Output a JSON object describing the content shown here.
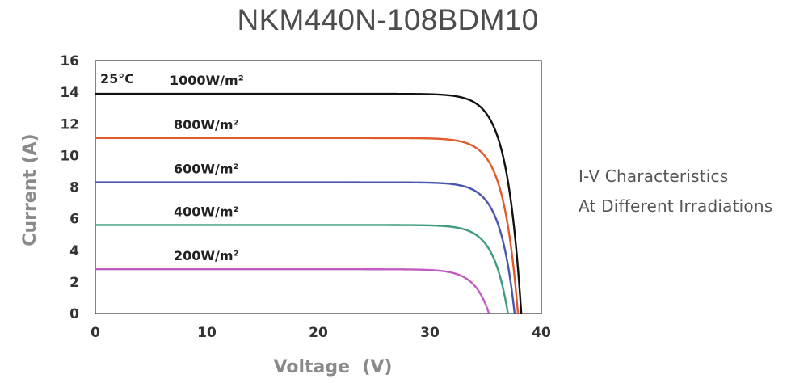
{
  "title": "NKM440N-108BDM10",
  "side_text": {
    "line1": "I-V Characteristics",
    "line2": "At Different Irradiations"
  },
  "chart_data": {
    "type": "line",
    "title": "NKM440N-108BDM10",
    "xlabel": "Voltage  (V)",
    "ylabel": "Current (A)",
    "xlim": [
      0,
      40
    ],
    "ylim": [
      0,
      16
    ],
    "xticks": [
      0,
      10,
      20,
      30,
      40
    ],
    "yticks": [
      0,
      2,
      4,
      6,
      8,
      10,
      12,
      14,
      16
    ],
    "grid": false,
    "annotation": "25°C",
    "series": [
      {
        "name": "1000W/m²",
        "color": "#111111",
        "isc": 13.9,
        "voc": 38.2
      },
      {
        "name": "800W/m²",
        "color": "#e05a2a",
        "isc": 11.1,
        "voc": 37.9
      },
      {
        "name": "600W/m²",
        "color": "#4a55b0",
        "isc": 8.3,
        "voc": 37.6
      },
      {
        "name": "400W/m²",
        "color": "#3f9a80",
        "isc": 5.6,
        "voc": 37.0
      },
      {
        "name": "200W/m²",
        "color": "#c25cc2",
        "isc": 2.8,
        "voc": 35.3
      }
    ]
  }
}
